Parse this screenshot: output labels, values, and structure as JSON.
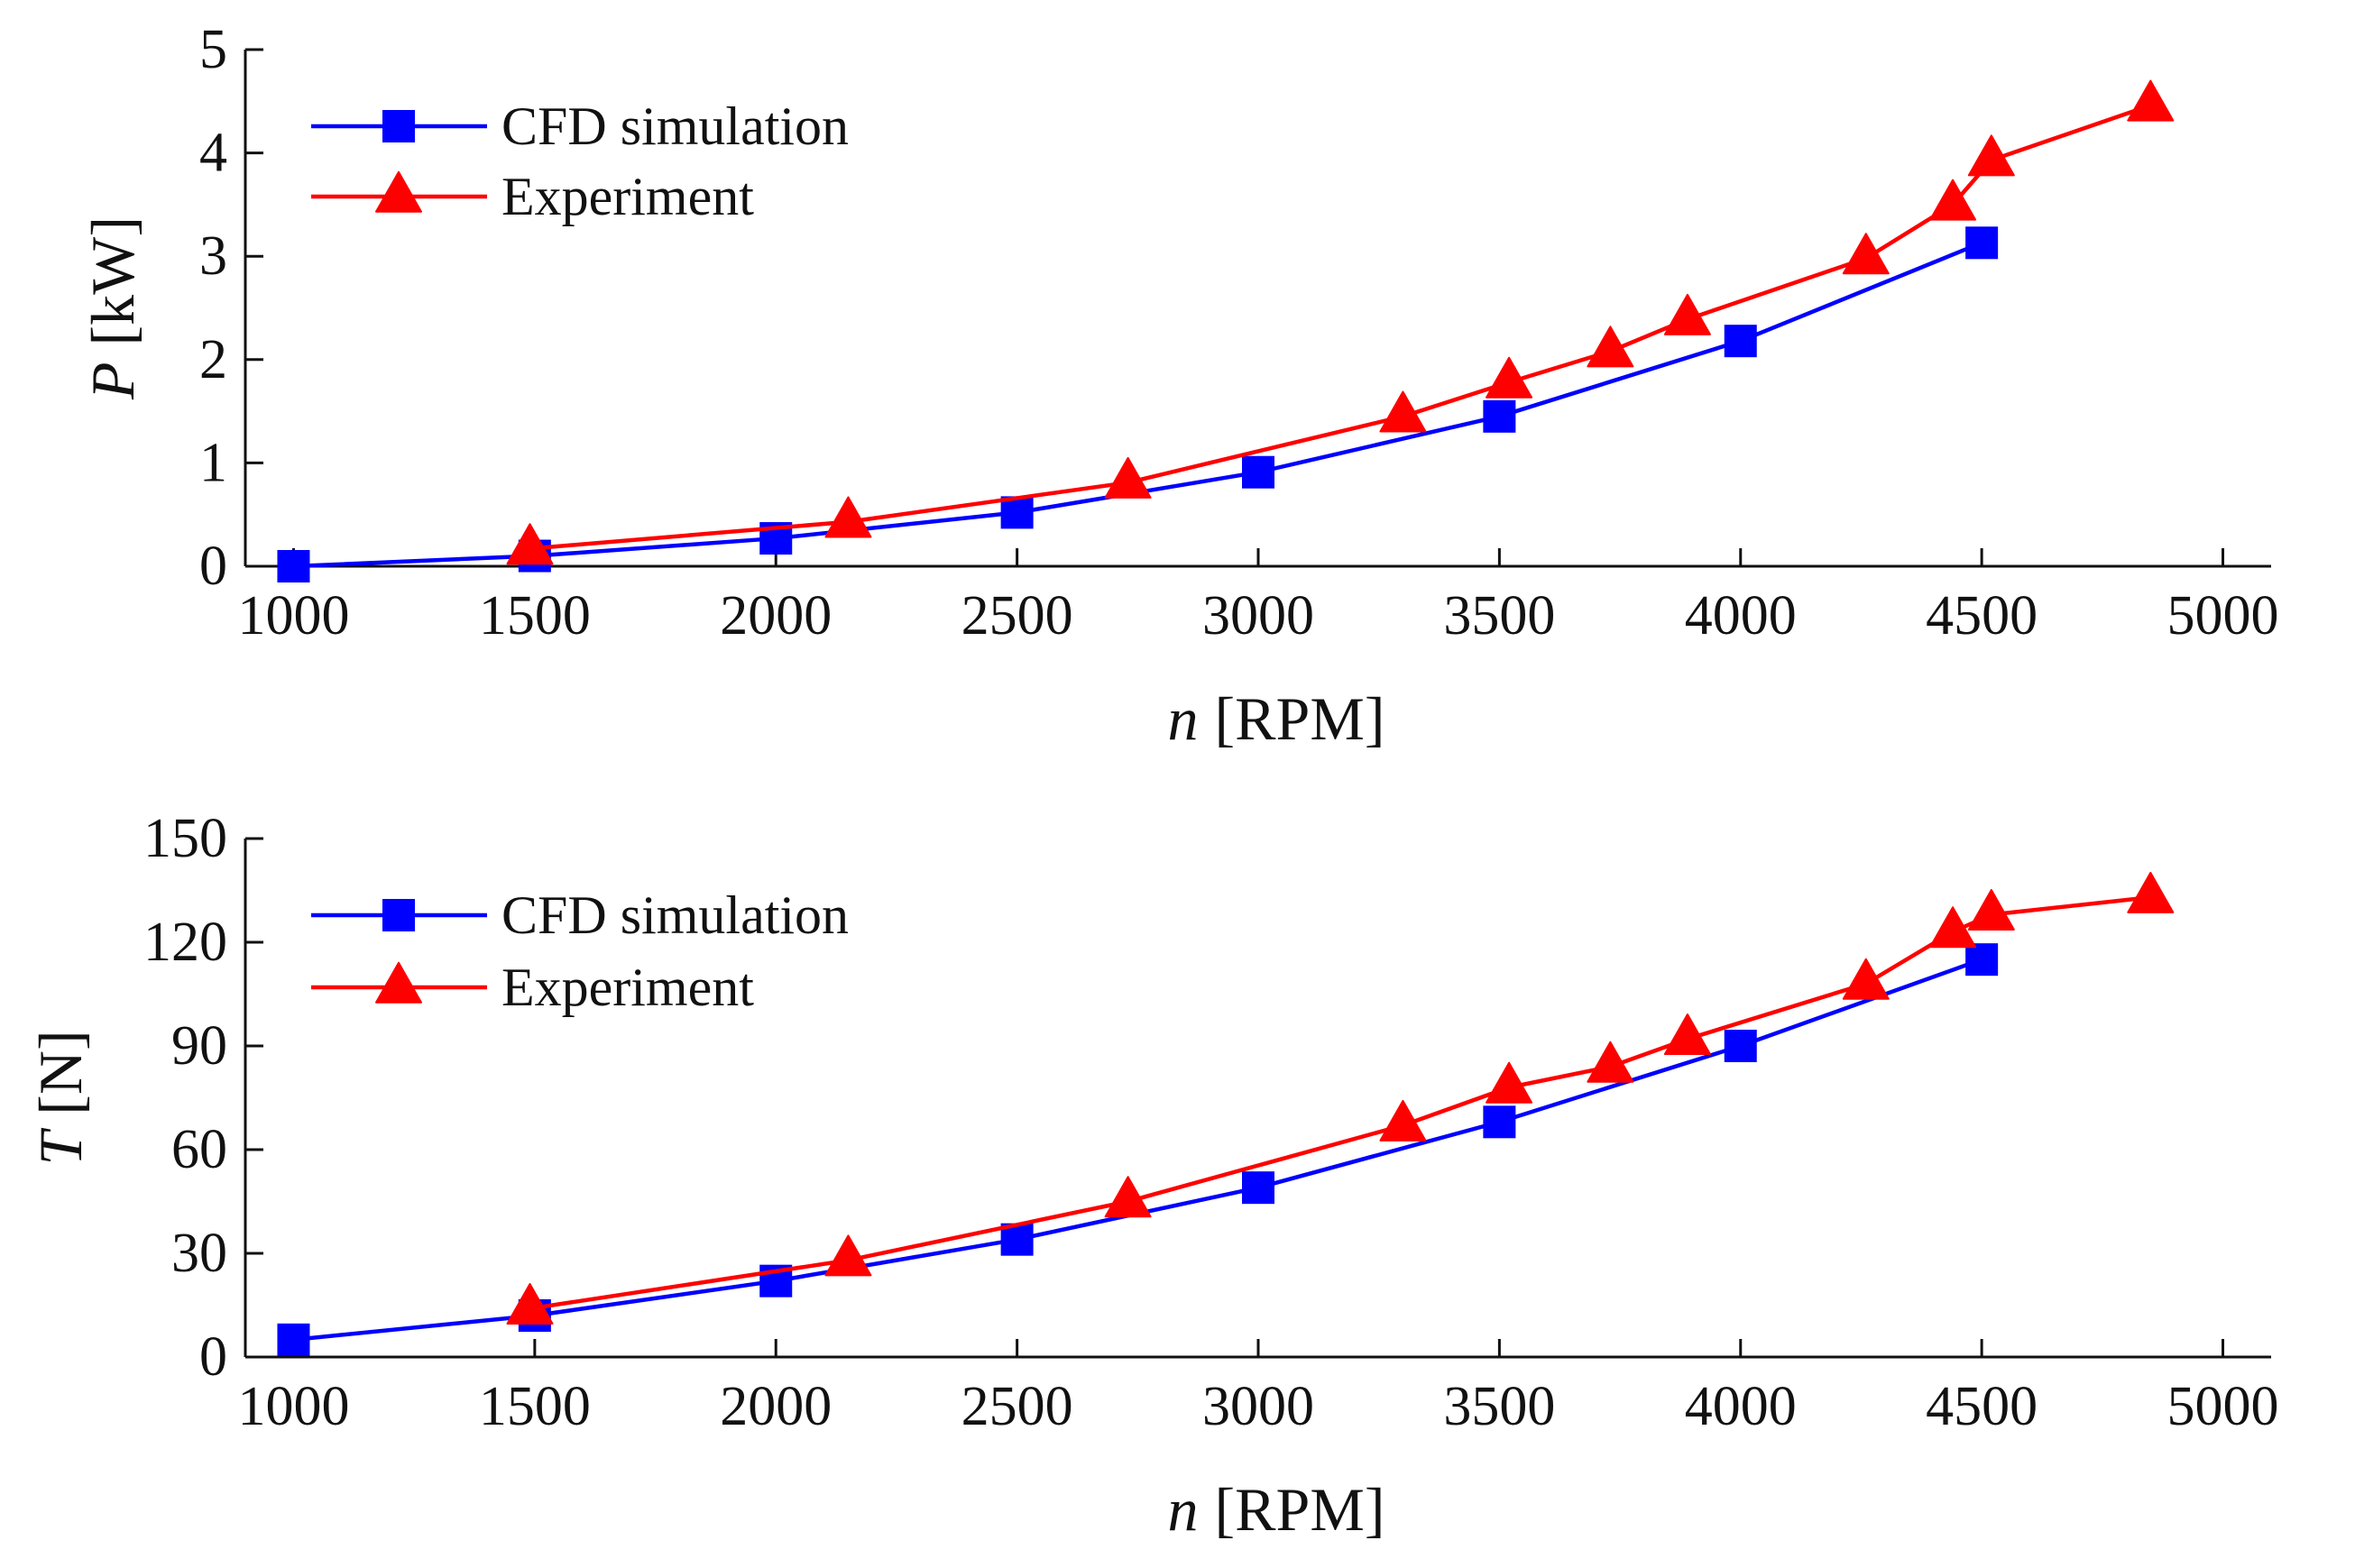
{
  "chart_data": [
    {
      "type": "line",
      "id": "power",
      "xlabel_var": "n",
      "xlabel_unit": "[RPM]",
      "ylabel_var": "P",
      "ylabel_unit": "[kW]",
      "xlim": [
        900,
        5100
      ],
      "ylim": [
        0,
        5
      ],
      "xticks": [
        1000,
        1500,
        2000,
        2500,
        3000,
        3500,
        4000,
        4500,
        5000
      ],
      "yticks": [
        0,
        1,
        2,
        3,
        4,
        5
      ],
      "grid": false,
      "legend_position": "top-left",
      "series": [
        {
          "name": "CFD simulation",
          "color": "#0000ff",
          "marker": "square",
          "x": [
            1000,
            1500,
            2000,
            2500,
            3000,
            3500,
            4000,
            4500
          ],
          "y": [
            0.0,
            0.1,
            0.27,
            0.52,
            0.91,
            1.45,
            2.18,
            3.13
          ]
        },
        {
          "name": "Experiment",
          "color": "#ff0000",
          "marker": "triangle",
          "x": [
            1490,
            2150,
            2730,
            3300,
            3520,
            3730,
            3890,
            4260,
            4440,
            4520,
            4850
          ],
          "y": [
            0.17,
            0.43,
            0.81,
            1.45,
            1.78,
            2.08,
            2.39,
            2.98,
            3.5,
            3.93,
            4.46
          ]
        }
      ]
    },
    {
      "type": "line",
      "id": "thrust",
      "xlabel_var": "n",
      "xlabel_unit": "[RPM]",
      "ylabel_var": "T",
      "ylabel_unit": "[N]",
      "xlim": [
        900,
        5100
      ],
      "ylim": [
        0,
        150
      ],
      "xticks": [
        1000,
        1500,
        2000,
        2500,
        3000,
        3500,
        4000,
        4500,
        5000
      ],
      "yticks": [
        0,
        30,
        60,
        90,
        120,
        150
      ],
      "grid": false,
      "legend_position": "top-left",
      "series": [
        {
          "name": "CFD simulation",
          "color": "#0000ff",
          "marker": "square",
          "x": [
            1000,
            1500,
            2000,
            2500,
            3000,
            3500,
            4000,
            4500
          ],
          "y": [
            5,
            12,
            22,
            34,
            49,
            68,
            90,
            115
          ]
        },
        {
          "name": "Experiment",
          "color": "#ff0000",
          "marker": "triangle",
          "x": [
            1490,
            2150,
            2730,
            3300,
            3520,
            3730,
            3890,
            4260,
            4440,
            4520,
            4850
          ],
          "y": [
            14,
            28,
            45,
            67,
            78,
            84,
            92,
            108,
            123,
            128,
            133
          ]
        }
      ]
    }
  ]
}
